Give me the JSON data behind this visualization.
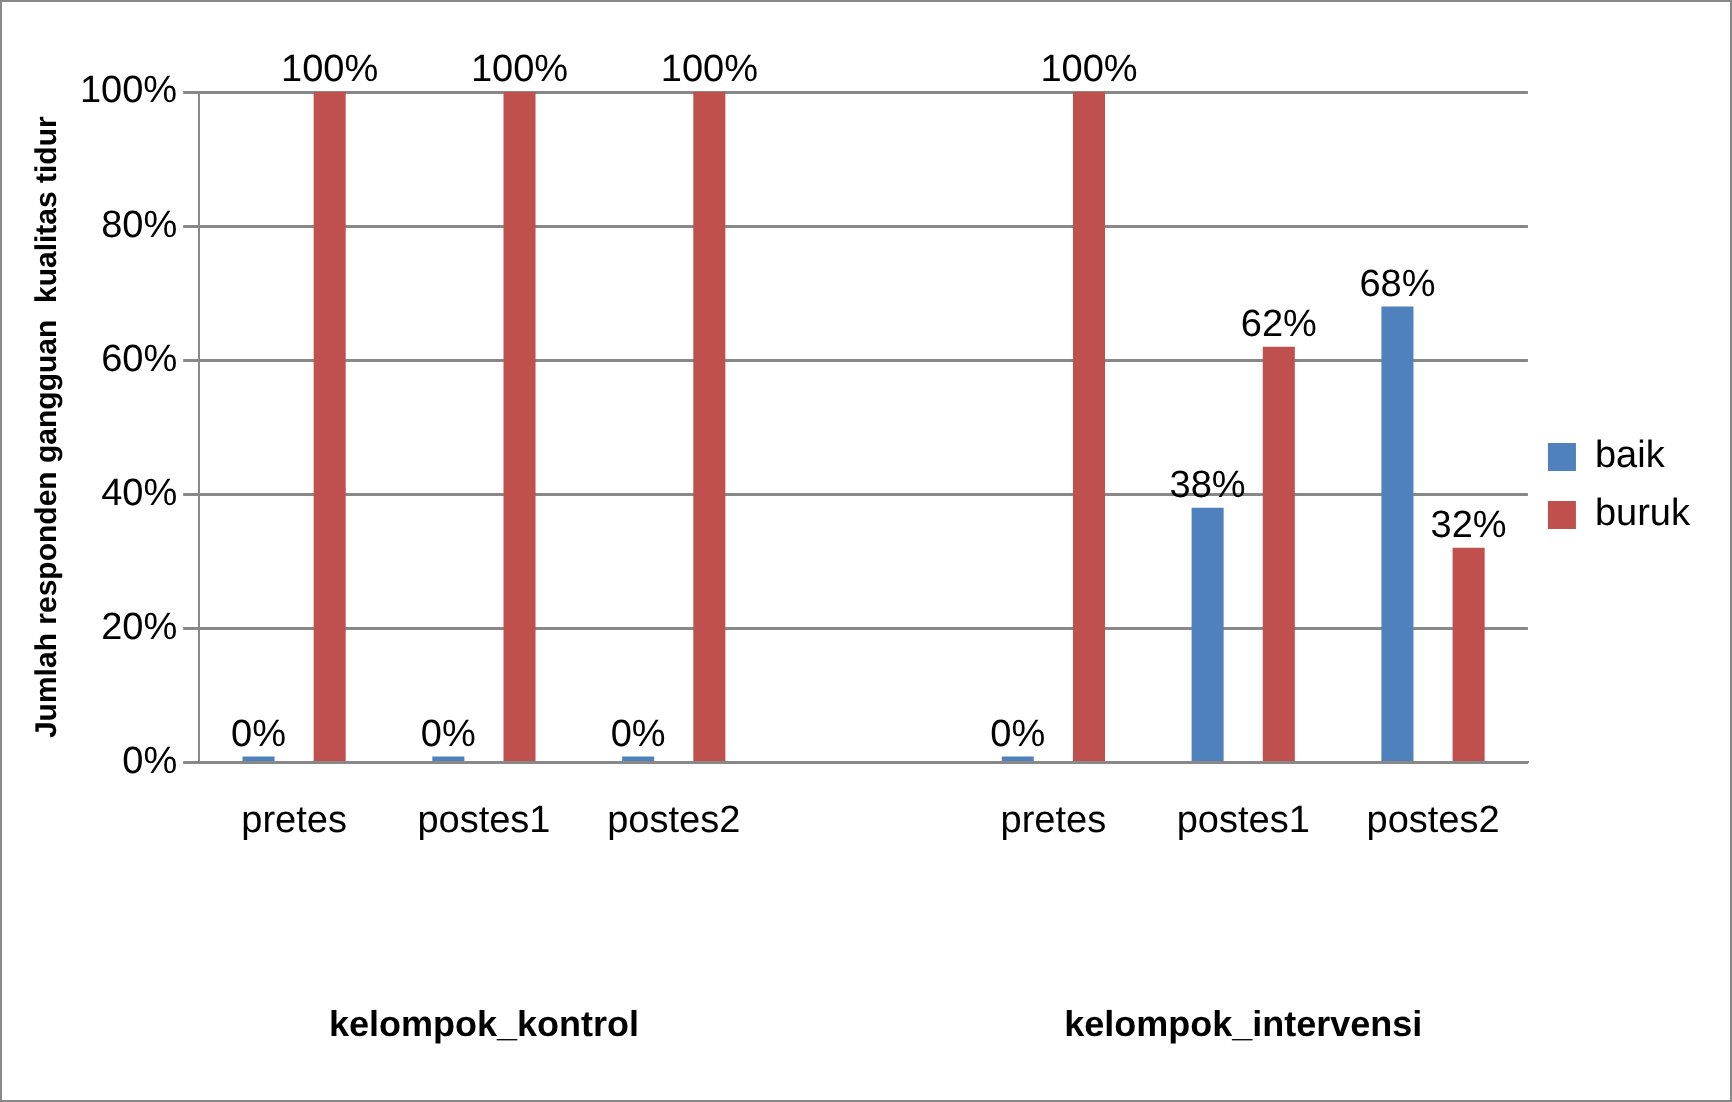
{
  "chart_data": {
    "type": "bar",
    "ylabel": "Jumlah responden gangguan  kualitas tidur",
    "categories": [
      "pretes",
      "postes1",
      "postes2",
      null,
      "pretes",
      "postes1",
      "postes2"
    ],
    "series": [
      {
        "name": "baik",
        "color": "#4f81bd",
        "values": [
          0,
          0,
          0,
          null,
          0,
          38,
          68
        ],
        "value_labels": [
          "0%",
          "0%",
          "0%",
          null,
          "0%",
          "38%",
          "68%"
        ]
      },
      {
        "name": "buruk",
        "color": "#c0504d",
        "values": [
          100,
          100,
          100,
          null,
          100,
          62,
          32
        ],
        "value_labels": [
          "100%",
          "100%",
          "100%",
          null,
          "100%",
          "62%",
          "32%"
        ]
      }
    ],
    "ylim": [
      0,
      100
    ],
    "yticks": [
      {
        "value": 0,
        "label": "0%"
      },
      {
        "value": 20,
        "label": "20%"
      },
      {
        "value": 40,
        "label": "40%"
      },
      {
        "value": 60,
        "label": "60%"
      },
      {
        "value": 80,
        "label": "80%"
      },
      {
        "value": 100,
        "label": "100%"
      }
    ],
    "annotations": [
      "kelompok_kontrol",
      "kelompok_intervensi"
    ],
    "grid": "y",
    "legend": "right"
  }
}
